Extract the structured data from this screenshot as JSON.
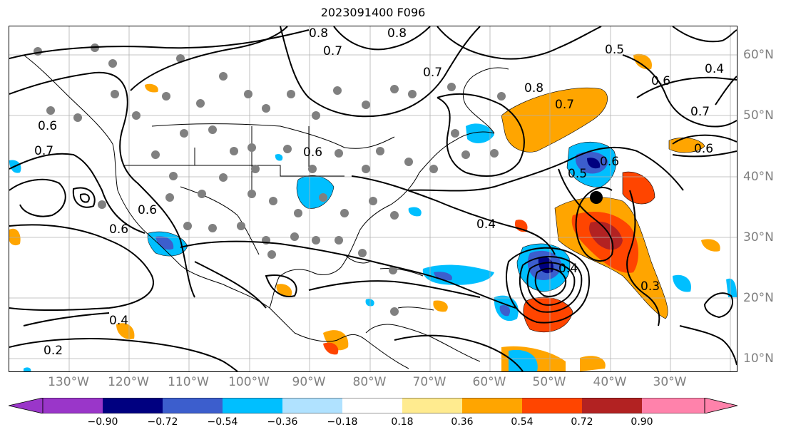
{
  "title": "2023091400 F096",
  "lon_labels": [
    "130°W",
    "120°W",
    "110°W",
    "100°W",
    "90°W",
    "80°W",
    "70°W",
    "60°W",
    "50°W",
    "40°W",
    "30°W"
  ],
  "lat_labels": [
    "60°N",
    "50°N",
    "40°N",
    "30°N",
    "20°N",
    "10°N"
  ],
  "contour_labels": [
    "0.8",
    "0.7",
    "0.6",
    "0.7",
    "0.8",
    "0.5",
    "0.4",
    "0.6",
    "0.7",
    "0.6",
    "0.8",
    "0.7",
    "0.4",
    "0.5",
    "0.6",
    "0.4",
    "0.3",
    "0.7",
    "0.6",
    "0.6",
    "0.6",
    "0.4",
    "0.2"
  ],
  "colorbar": {
    "ticks": [
      "−0.90",
      "−0.72",
      "−0.54",
      "−0.36",
      "−0.18",
      "0.18",
      "0.36",
      "0.54",
      "0.72",
      "0.90"
    ],
    "colors": [
      "#9a36c9",
      "#000080",
      "#3c5ecd",
      "#00bfff",
      "#b0e2ff",
      "#ffffff",
      "#ffeb8f",
      "#ffa500",
      "#ff4500",
      "#b22222",
      "#ff82ab"
    ]
  },
  "colors": {
    "orange": "#ffa500",
    "red": "#ff4500",
    "darkred": "#b22222",
    "skyblue": "#00bfff",
    "royalblue": "#3c5ecd",
    "navy": "#000080",
    "station": "#808080"
  }
}
